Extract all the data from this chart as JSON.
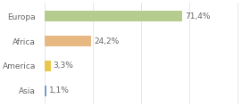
{
  "categories": [
    "Europa",
    "Africa",
    "America",
    "Asia"
  ],
  "values": [
    71.4,
    24.2,
    3.3,
    1.1
  ],
  "labels": [
    "71,4%",
    "24,2%",
    "3,3%",
    "1,1%"
  ],
  "bar_colors": [
    "#b5cc8e",
    "#e8b882",
    "#e8c84a",
    "#7799cc"
  ],
  "background_color": "#ffffff",
  "text_color": "#666666",
  "grid_color": "#dddddd",
  "xlim": [
    0,
    105
  ],
  "figsize": [
    2.8,
    1.2
  ],
  "dpi": 100,
  "label_fontsize": 6.5,
  "tick_fontsize": 6.5,
  "bar_height": 0.42,
  "grid_xticks": [
    0,
    25,
    50,
    75,
    100
  ]
}
